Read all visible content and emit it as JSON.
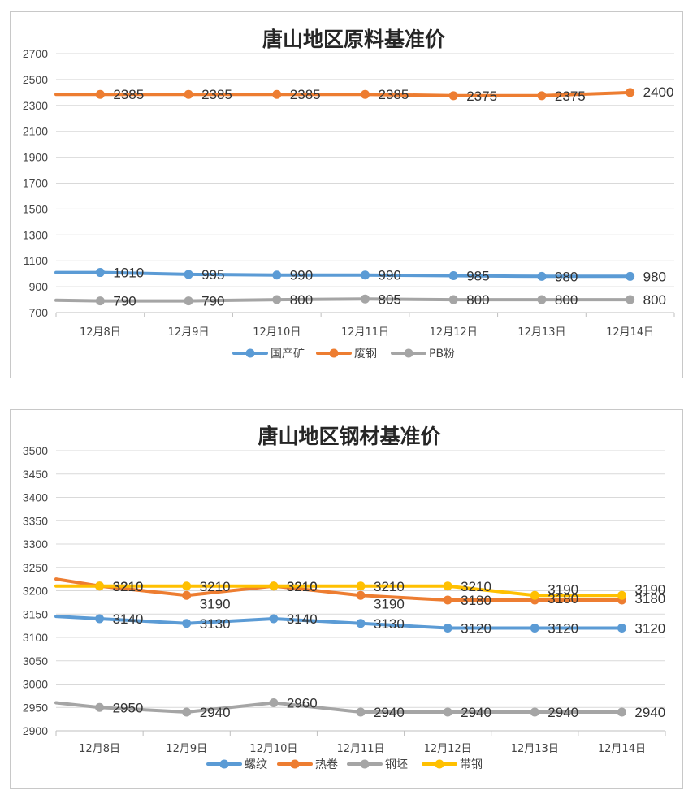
{
  "chart_data": [
    {
      "type": "line",
      "title": "唐山地区原料基准价",
      "categories": [
        "12月8日",
        "12月9日",
        "12月10日",
        "12月11日",
        "12月12日",
        "12月13日",
        "12月14日"
      ],
      "ylim": [
        700,
        2700
      ],
      "ystep": 200,
      "y_ticks": [
        "700",
        "900",
        "1100",
        "1300",
        "1500",
        "1700",
        "1900",
        "2100",
        "2300",
        "2500",
        "2700"
      ],
      "grid": true,
      "legend": "bottom",
      "series": [
        {
          "name": "国产矿",
          "color": "#5B9BD5",
          "start": 1010,
          "values": [
            1010,
            995,
            990,
            990,
            985,
            980,
            980
          ]
        },
        {
          "name": "废钢",
          "color": "#ED7D31",
          "start": 2385,
          "values": [
            2385,
            2385,
            2385,
            2385,
            2375,
            2375,
            2400
          ]
        },
        {
          "name": "PB粉",
          "color": "#A5A5A5",
          "start": 795,
          "values": [
            790,
            790,
            800,
            805,
            800,
            800,
            800
          ]
        }
      ]
    },
    {
      "type": "line",
      "title": "唐山地区钢材基准价",
      "categories": [
        "12月8日",
        "12月9日",
        "12月10日",
        "12月11日",
        "12月12日",
        "12月13日",
        "12月14日"
      ],
      "ylim": [
        2900,
        3500
      ],
      "ystep": 50,
      "y_ticks": [
        "2900",
        "2950",
        "3000",
        "3050",
        "3100",
        "3150",
        "3200",
        "3250",
        "3300",
        "3350",
        "3400",
        "3450",
        "3500"
      ],
      "grid": true,
      "legend": "bottom",
      "series": [
        {
          "name": "螺纹",
          "color": "#5B9BD5",
          "start": 3145,
          "values": [
            3140,
            3130,
            3140,
            3130,
            3120,
            3120,
            3120
          ]
        },
        {
          "name": "热卷",
          "color": "#ED7D31",
          "start": 3225,
          "values": [
            3210,
            3190,
            3210,
            3190,
            3180,
            3180,
            3180
          ]
        },
        {
          "name": "钢坯",
          "color": "#A5A5A5",
          "start": 2960,
          "values": [
            2950,
            2940,
            2960,
            2940,
            2940,
            2940,
            2940
          ]
        },
        {
          "name": "带钢",
          "color": "#FFC000",
          "start": 3210,
          "values": [
            3210,
            3210,
            3210,
            3210,
            3210,
            3190,
            3190
          ]
        }
      ]
    }
  ]
}
